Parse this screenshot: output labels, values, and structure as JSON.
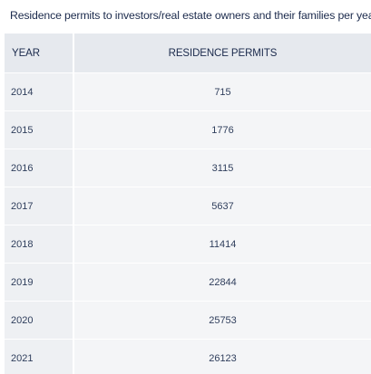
{
  "title": "Residence permits to investors/real estate owners and their families per year",
  "chart_data": {
    "type": "table",
    "title": "Residence permits to investors/real estate owners and their families per year",
    "columns": [
      "YEAR",
      "RESIDENCE PERMITS"
    ],
    "rows": [
      {
        "year": "2014",
        "permits": "715"
      },
      {
        "year": "2015",
        "permits": "1776"
      },
      {
        "year": "2016",
        "permits": "3115"
      },
      {
        "year": "2017",
        "permits": "5637"
      },
      {
        "year": "2018",
        "permits": "11414"
      },
      {
        "year": "2019",
        "permits": "22844"
      },
      {
        "year": "2020",
        "permits": "25753"
      },
      {
        "year": "2021",
        "permits": "26123"
      }
    ]
  }
}
